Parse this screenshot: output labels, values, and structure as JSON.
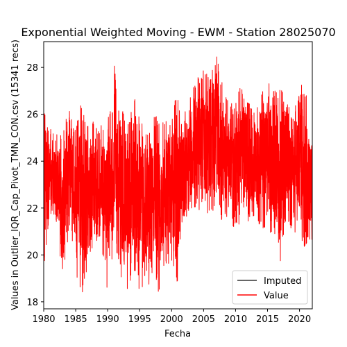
{
  "chart_data": {
    "type": "line",
    "title": "Exponential Weighted Moving - EWM - Station 28025070",
    "xlabel": "Fecha",
    "ylabel": "Values in Outlier_IQR_Cap_Pivot_TMN_CON.csv (15341 recs)",
    "xlim": [
      1980.0,
      2022.0
    ],
    "ylim": [
      17.7,
      29.1
    ],
    "x_ticks": [
      1980,
      1985,
      1990,
      1995,
      2000,
      2005,
      2010,
      2015,
      2020
    ],
    "x_tick_labels": [
      "1980",
      "1985",
      "1990",
      "1995",
      "2000",
      "2005",
      "2010",
      "2015",
      "2020"
    ],
    "y_ticks": [
      18,
      20,
      22,
      24,
      26,
      28
    ],
    "y_tick_labels": [
      "18",
      "20",
      "22",
      "24",
      "26",
      "28"
    ],
    "grid": false,
    "legend": {
      "position": "lower-right",
      "entries": [
        {
          "name": "Imputed",
          "color": "#333333"
        },
        {
          "name": "Value",
          "color": "#ff0000"
        }
      ]
    },
    "series": [
      {
        "name": "Value",
        "color": "#ff0000",
        "x": [
          1980.0,
          1981.0,
          1982.0,
          1983.0,
          1984.0,
          1985.0,
          1986.0,
          1987.0,
          1988.0,
          1989.0,
          1990.0,
          1991.0,
          1992.0,
          1993.0,
          1994.0,
          1995.0,
          1996.0,
          1997.0,
          1998.0,
          1999.0,
          2000.0,
          2001.0,
          2002.0,
          2003.0,
          2004.0,
          2005.0,
          2006.0,
          2007.0,
          2008.0,
          2009.0,
          2010.0,
          2011.0,
          2012.0,
          2013.0,
          2014.0,
          2015.0,
          2016.0,
          2017.0,
          2018.0,
          2019.0,
          2020.0,
          2021.0,
          2022.0
        ],
        "band_low": [
          19.3,
          21.6,
          21.4,
          18.4,
          21.3,
          19.2,
          18.3,
          19.0,
          20.3,
          20.6,
          18.2,
          20.6,
          19.0,
          18.3,
          18.9,
          18.4,
          18.5,
          18.9,
          18.3,
          19.4,
          19.8,
          18.3,
          21.5,
          21.9,
          21.6,
          22.2,
          21.3,
          22.1,
          21.0,
          21.8,
          20.7,
          21.7,
          21.3,
          21.4,
          21.0,
          20.8,
          21.0,
          19.4,
          21.4,
          21.0,
          20.6,
          20.2,
          20.6
        ],
        "band_high": [
          26.2,
          25.4,
          25.2,
          25.4,
          26.4,
          25.3,
          27.2,
          26.1,
          25.6,
          25.7,
          25.9,
          28.4,
          26.3,
          25.8,
          27.1,
          25.9,
          25.4,
          25.9,
          26.0,
          25.7,
          26.5,
          26.7,
          26.3,
          27.0,
          27.8,
          28.0,
          27.5,
          28.6,
          27.2,
          26.4,
          26.6,
          27.4,
          26.9,
          26.0,
          27.0,
          27.6,
          27.0,
          27.4,
          26.6,
          26.0,
          28.4,
          27.0,
          25.2
        ]
      },
      {
        "name": "Imputed",
        "color": "#333333",
        "x": [],
        "values": []
      }
    ]
  }
}
